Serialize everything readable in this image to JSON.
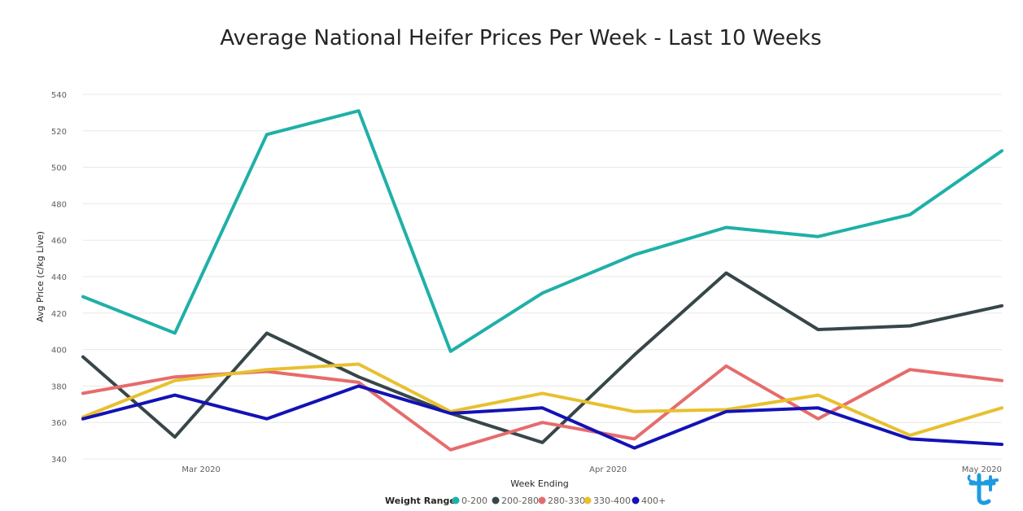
{
  "chart_data": {
    "type": "line",
    "title": "Average National Heifer Prices Per Week - Last 10 Weeks",
    "xlabel": "Week Ending",
    "ylabel": "Avg Price (c/kg Live)",
    "ylim": [
      340,
      540
    ],
    "yticks": [
      340,
      360,
      380,
      400,
      420,
      440,
      460,
      480,
      500,
      520,
      540
    ],
    "x": [
      "2020-02-21",
      "2020-02-28",
      "2020-03-06",
      "2020-03-13",
      "2020-03-20",
      "2020-03-27",
      "2020-04-03",
      "2020-04-10",
      "2020-04-17",
      "2020-04-24",
      "2020-05-01"
    ],
    "xticks": [
      {
        "date": "2020-03-01",
        "label": "Mar 2020"
      },
      {
        "date": "2020-04-01",
        "label": "Apr 2020"
      },
      {
        "date": "2020-05-01",
        "label": "May 2020"
      }
    ],
    "grid": true,
    "legend_title": "Weight Range",
    "legend_position": "bottom",
    "series": [
      {
        "name": "0-200",
        "color": "#1fb0a8",
        "values": [
          429,
          409,
          518,
          531,
          399,
          431,
          452,
          467,
          462,
          474,
          509
        ]
      },
      {
        "name": "200-280",
        "color": "#374649",
        "values": [
          396,
          352,
          409,
          385,
          365,
          349,
          397,
          442,
          411,
          413,
          424
        ]
      },
      {
        "name": "280-330",
        "color": "#e66c6c",
        "values": [
          376,
          385,
          388,
          382,
          345,
          360,
          351,
          391,
          362,
          389,
          383
        ]
      },
      {
        "name": "330-400",
        "color": "#e8c02f",
        "values": [
          363,
          383,
          389,
          392,
          366,
          376,
          366,
          367,
          375,
          353,
          368
        ]
      },
      {
        "name": "400+",
        "color": "#1312b5",
        "values": [
          362,
          375,
          362,
          380,
          365,
          368,
          346,
          366,
          368,
          351,
          348
        ]
      }
    ]
  },
  "logo": {
    "name": "brand-logo",
    "color": "#1e9be0"
  }
}
